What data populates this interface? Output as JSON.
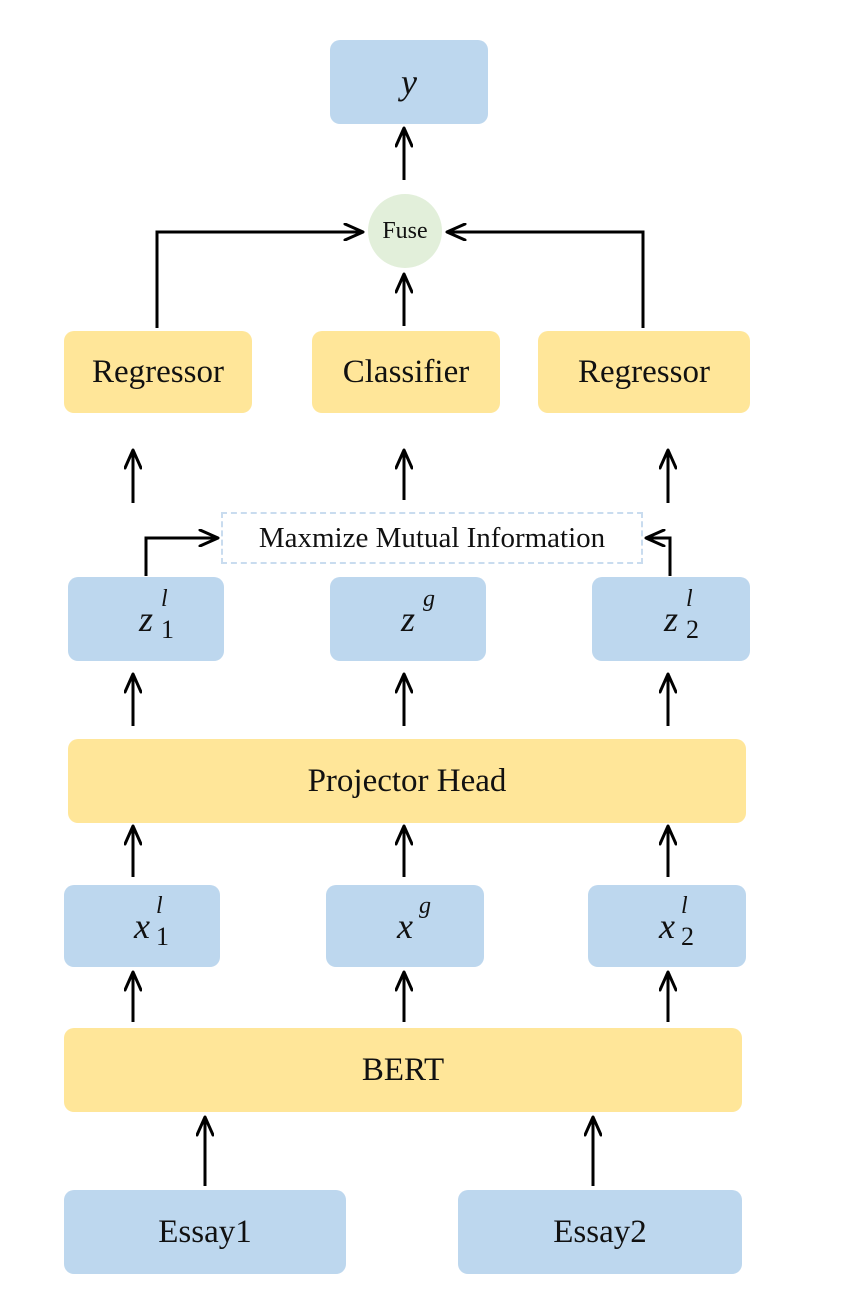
{
  "output": {
    "var": "y"
  },
  "fuse": {
    "label": "Fuse"
  },
  "heads": {
    "left": "Regressor",
    "center": "Classifier",
    "right": "Regressor"
  },
  "mmi": {
    "label": "Maxmize Mutual Information"
  },
  "z": {
    "left": {
      "base": "z",
      "sup": "l",
      "sub": "1"
    },
    "center": {
      "base": "z",
      "sup": "g",
      "sub": ""
    },
    "right": {
      "base": "z",
      "sup": "l",
      "sub": "2"
    }
  },
  "projector": {
    "label": "Projector Head"
  },
  "x": {
    "left": {
      "base": "x",
      "sup": "l",
      "sub": "1"
    },
    "center": {
      "base": "x",
      "sup": "g",
      "sub": ""
    },
    "right": {
      "base": "x",
      "sup": "l",
      "sub": "2"
    }
  },
  "encoder": {
    "label": "BERT"
  },
  "inputs": {
    "left": "Essay1",
    "right": "Essay2"
  },
  "colors": {
    "blue_box": "#bdd7ee",
    "yellow_box": "#ffe699",
    "fuse_circle": "#e2efda",
    "arrow": "#000000"
  }
}
